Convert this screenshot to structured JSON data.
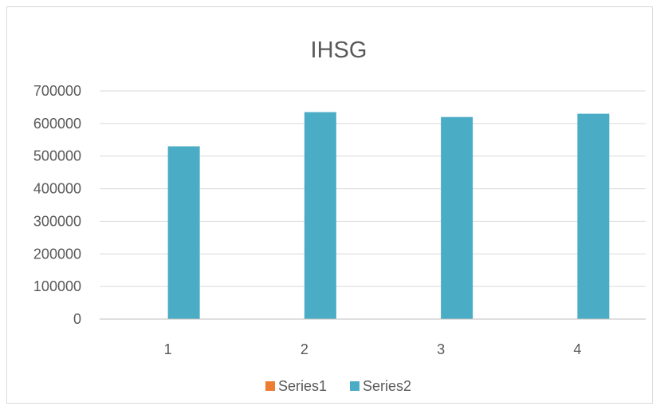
{
  "chart_data": {
    "type": "bar",
    "title": "IHSG",
    "xlabel": "",
    "ylabel": "",
    "categories": [
      "1",
      "2",
      "3",
      "4"
    ],
    "series": [
      {
        "name": "Series1",
        "values": [
          0,
          0,
          0,
          0
        ],
        "color": "#ed7d31"
      },
      {
        "name": "Series2",
        "values": [
          530000,
          635000,
          620000,
          630000
        ],
        "color": "#4bacc6"
      }
    ],
    "ylim": [
      0,
      700000
    ],
    "yticks": [
      0,
      100000,
      200000,
      300000,
      400000,
      500000,
      600000,
      700000
    ],
    "grid": true,
    "legend": "bottom"
  }
}
